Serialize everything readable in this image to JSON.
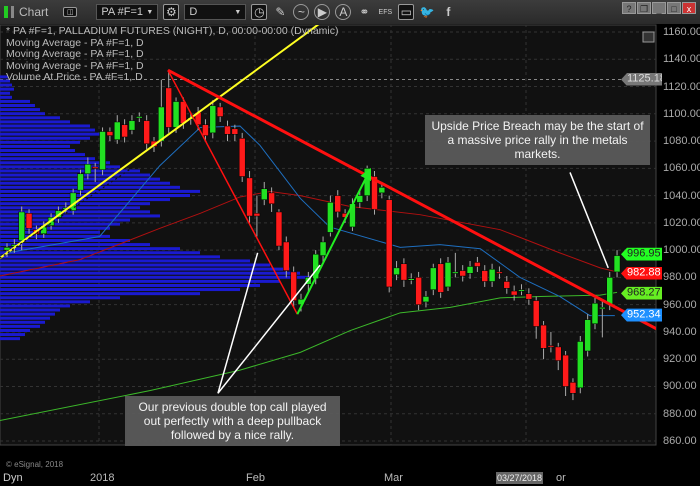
{
  "toolbar": {
    "title": "Chart",
    "symbol": "PA #F=1",
    "interval": "D",
    "twitter": "twitter-icon",
    "facebook": "f",
    "window_buttons": [
      "?",
      "❐",
      "_",
      "□",
      "x"
    ]
  },
  "legend": [
    "* PA #F=1, PALLADIUM FUTURES (NIGHT), D, 00:00-00:00 (Dynamic)",
    "Moving Average - PA #F=1, D",
    "Moving Average - PA #F=1, D",
    "Moving Average - PA #F=1, D",
    "Volume At Price - PA #F=1, D"
  ],
  "callouts": {
    "upper": "Upside Price Breach may be the start of a massive price rally in the metals markets.",
    "lower": "Our previous double top call played out perfectly with a deep pullback followed by a nice rally."
  },
  "copyright": "© eSignal, 2018",
  "x_axis": {
    "left": "Dyn",
    "labels": [
      "2018",
      "Feb",
      "Mar"
    ],
    "cursor_date": "03/27/2018",
    "apr_partial": "or"
  },
  "colors": {
    "up": "#22e022",
    "down": "#ff1a1a",
    "ma_short": "#1e6fc0",
    "ma_mid": "#b01010",
    "ma_long": "#3cb82a",
    "vap": "#1a1ad0",
    "trend_yellow": "#ffff22",
    "trend_red": "#ff1010"
  },
  "chart_data": {
    "type": "candlestick",
    "ylim": [
      850,
      1165
    ],
    "y_ticks": [
      1160,
      1140,
      1120,
      1100,
      1080,
      1060,
      1040,
      1020,
      1000,
      980,
      960,
      940,
      920,
      900,
      880,
      860
    ],
    "y_tick_labels": [
      "1160.00",
      "1140.00",
      "1120.00",
      "1100.00",
      "1080.00",
      "1060.00",
      "1040.00",
      "1020.00",
      "1000.00",
      "980.00",
      "960.00",
      "940.00",
      "920.00",
      "900.00",
      "880.00",
      "860.00"
    ],
    "price_tags": [
      {
        "value": "1125.18",
        "color": "#777777"
      },
      {
        "value": "996.95",
        "color": "#22ff22"
      },
      {
        "value": "982.88",
        "color": "#ff1010"
      },
      {
        "value": "968.27",
        "color": "#66ee22"
      },
      {
        "value": "952.34",
        "color": "#1e90ff"
      }
    ],
    "ohlc": [
      [
        1000,
        1005,
        995,
        1002
      ],
      [
        1003,
        1008,
        998,
        1004
      ],
      [
        1007,
        1032,
        1000,
        1028
      ],
      [
        1027,
        1030,
        1012,
        1016
      ],
      [
        1015,
        1018,
        1008,
        1012
      ],
      [
        1012,
        1021,
        1009,
        1018
      ],
      [
        1018,
        1027,
        1015,
        1024
      ],
      [
        1024,
        1032,
        1020,
        1029
      ],
      [
        1030,
        1035,
        1027,
        1031
      ],
      [
        1029,
        1045,
        1026,
        1042
      ],
      [
        1044,
        1059,
        1040,
        1056
      ],
      [
        1056,
        1068,
        1052,
        1063
      ],
      [
        1061,
        1064,
        1050,
        1060
      ],
      [
        1059,
        1090,
        1055,
        1087
      ],
      [
        1087,
        1090,
        1080,
        1084
      ],
      [
        1081,
        1099,
        1078,
        1094
      ],
      [
        1092,
        1096,
        1079,
        1083
      ],
      [
        1088,
        1099,
        1085,
        1095
      ],
      [
        1097,
        1101,
        1094,
        1098
      ],
      [
        1095,
        1099,
        1074,
        1078
      ],
      [
        1080,
        1083,
        1072,
        1076
      ],
      [
        1080,
        1125,
        1076,
        1105
      ],
      [
        1119,
        1132,
        1086,
        1090
      ],
      [
        1090,
        1112,
        1086,
        1109
      ],
      [
        1109,
        1112,
        1089,
        1093
      ],
      [
        1096,
        1101,
        1092,
        1097
      ],
      [
        1101,
        1105,
        1088,
        1092
      ],
      [
        1092,
        1096,
        1080,
        1084
      ],
      [
        1086,
        1110,
        1082,
        1106
      ],
      [
        1105,
        1108,
        1094,
        1098
      ],
      [
        1091,
        1095,
        1080,
        1085
      ],
      [
        1089,
        1092,
        1080,
        1085
      ],
      [
        1082,
        1086,
        1050,
        1054
      ],
      [
        1053,
        1058,
        1020,
        1025
      ],
      [
        1027,
        1040,
        1010,
        1025
      ],
      [
        1037,
        1050,
        1033,
        1045
      ],
      [
        1042,
        1046,
        1028,
        1034
      ],
      [
        1028,
        1030,
        1000,
        1003
      ],
      [
        1006,
        1010,
        980,
        985
      ],
      [
        984,
        988,
        958,
        963
      ],
      [
        960,
        968,
        955,
        964
      ],
      [
        975,
        984,
        970,
        980
      ],
      [
        979,
        1000,
        975,
        997
      ],
      [
        996,
        1010,
        990,
        1006
      ],
      [
        1013,
        1040,
        1010,
        1035
      ],
      [
        1040,
        1044,
        1024,
        1028
      ],
      [
        1027,
        1030,
        1020,
        1024
      ],
      [
        1017,
        1038,
        1014,
        1034
      ],
      [
        1035,
        1043,
        1031,
        1040
      ],
      [
        1040,
        1062,
        1036,
        1060
      ],
      [
        1054,
        1058,
        1026,
        1030
      ],
      [
        1042,
        1050,
        1038,
        1046
      ],
      [
        1037,
        1040,
        969,
        973
      ],
      [
        982,
        992,
        978,
        987
      ],
      [
        990,
        994,
        973,
        978
      ],
      [
        979,
        983,
        975,
        979
      ],
      [
        980,
        984,
        956,
        960
      ],
      [
        962,
        970,
        958,
        966
      ],
      [
        971,
        990,
        967,
        987
      ],
      [
        990,
        994,
        965,
        969
      ],
      [
        973,
        995,
        970,
        991
      ],
      [
        984,
        998,
        980,
        984
      ],
      [
        985,
        989,
        977,
        981
      ],
      [
        983,
        992,
        979,
        988
      ],
      [
        991,
        995,
        984,
        988
      ],
      [
        985,
        989,
        973,
        977
      ],
      [
        977,
        990,
        973,
        986
      ],
      [
        984,
        988,
        979,
        983
      ],
      [
        977,
        981,
        968,
        972
      ],
      [
        970,
        974,
        963,
        967
      ],
      [
        971,
        975,
        967,
        971
      ],
      [
        968,
        972,
        960,
        964
      ],
      [
        963,
        966,
        935,
        944
      ],
      [
        945,
        948,
        920,
        928
      ],
      [
        930,
        940,
        925,
        929
      ],
      [
        929,
        932,
        912,
        919
      ],
      [
        923,
        926,
        893,
        900
      ],
      [
        903,
        906,
        890,
        895
      ],
      [
        899,
        937,
        895,
        933
      ],
      [
        926,
        953,
        922,
        949
      ],
      [
        946,
        965,
        942,
        961
      ],
      [
        958,
        964,
        936,
        958
      ],
      [
        960,
        984,
        956,
        980
      ],
      [
        984,
        1000,
        980,
        996
      ]
    ],
    "ma_short": [
      [
        0,
        998
      ],
      [
        12.6,
        1010
      ],
      [
        20.8,
        1062
      ],
      [
        26.3,
        1090
      ],
      [
        31.7,
        1091
      ],
      [
        34.4,
        1077
      ],
      [
        39.9,
        1038
      ],
      [
        43.9,
        1017
      ],
      [
        53.5,
        1002
      ],
      [
        58.9,
        1004
      ],
      [
        64.4,
        1001
      ],
      [
        69.8,
        980
      ],
      [
        75.2,
        966
      ],
      [
        79.3,
        952
      ],
      [
        82.7,
        952
      ]
    ],
    "ma_mid": [
      [
        -1,
        981
      ],
      [
        9.9,
        993
      ],
      [
        20.8,
        1016
      ],
      [
        26.3,
        1027
      ],
      [
        31.7,
        1039
      ],
      [
        35.8,
        1043
      ],
      [
        39.9,
        1040
      ],
      [
        46.7,
        1032
      ],
      [
        56.2,
        1026
      ],
      [
        67.1,
        1015
      ],
      [
        75.2,
        998
      ],
      [
        80.7,
        987
      ],
      [
        83,
        984
      ]
    ],
    "ma_long": [
      [
        -1,
        875
      ],
      [
        19.5,
        897
      ],
      [
        31.7,
        912
      ],
      [
        39.9,
        925
      ],
      [
        46.7,
        941
      ],
      [
        53.5,
        954
      ],
      [
        60.3,
        958
      ],
      [
        67.1,
        965
      ],
      [
        72.5,
        966
      ],
      [
        80.7,
        967
      ],
      [
        83,
        969
      ]
    ],
    "vap_top_price": 1127,
    "vap_step": 3,
    "vap": [
      8,
      10,
      12,
      14,
      10,
      12,
      30,
      35,
      40,
      45,
      60,
      70,
      90,
      95,
      100,
      90,
      80,
      70,
      75,
      85,
      95,
      110,
      120,
      140,
      150,
      160,
      170,
      180,
      200,
      190,
      170,
      150,
      140,
      150,
      160,
      130,
      120,
      110,
      100,
      110,
      130,
      150,
      180,
      200,
      220,
      250,
      270,
      290,
      300,
      310,
      280,
      260,
      240,
      200,
      120,
      90,
      70,
      60,
      55,
      50,
      45,
      40,
      30,
      25,
      20
    ],
    "trendlines": [
      {
        "color": "#ffff22",
        "width": 2,
        "points": [
          [
            -1,
            994
          ],
          [
            44,
            1172
          ]
        ],
        "dash_start": [
          [
            -1,
            994
          ],
          [
            21,
            1075
          ]
        ]
      },
      {
        "color": "#ff1010",
        "width": 3,
        "points": [
          [
            21.9,
            1132
          ],
          [
            88.8,
            941
          ]
        ]
      },
      {
        "color": "#ff1010",
        "width": 1.5,
        "points": [
          [
            21.9,
            1132
          ],
          [
            39.5,
            953
          ]
        ]
      },
      {
        "color": "#22ee22",
        "width": 2,
        "points": [
          [
            39.5,
            953
          ],
          [
            49.4,
            1059
          ]
        ],
        "arrow": true
      },
      {
        "color": "#ffffff",
        "width": 1.5,
        "points": [
          [
            28.7,
            895
          ],
          [
            34.1,
            998
          ]
        ]
      },
      {
        "color": "#ffffff",
        "width": 1.5,
        "points": [
          [
            28.7,
            895
          ],
          [
            42.6,
            989
          ]
        ]
      },
      {
        "color": "#ffffff",
        "width": 1.5,
        "points": [
          [
            76.6,
            1057
          ],
          [
            81.8,
            987
          ]
        ]
      }
    ]
  }
}
